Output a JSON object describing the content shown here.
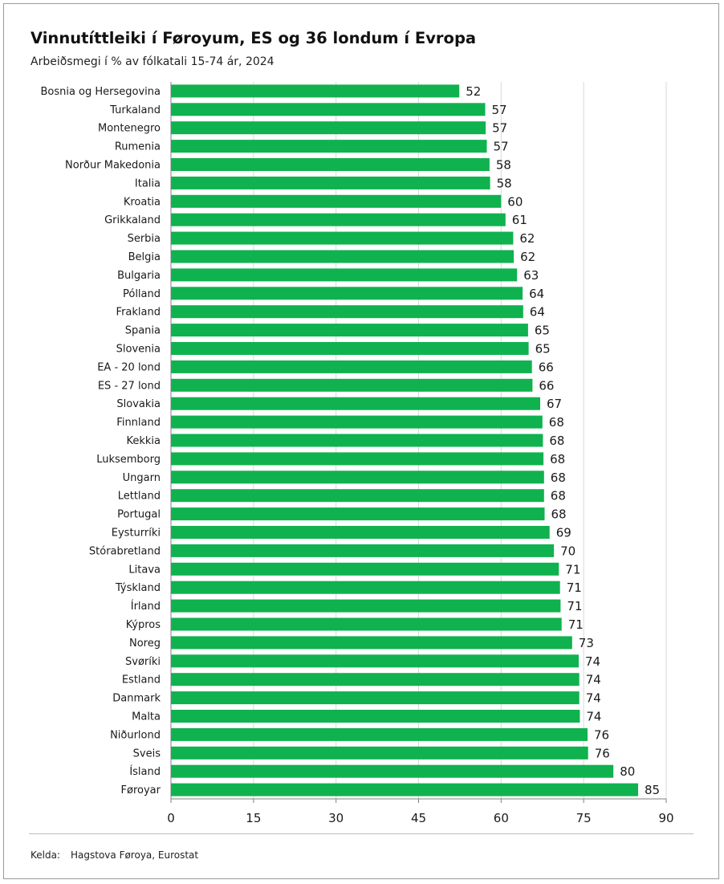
{
  "header": {
    "title": "Vinnutíttleiki í Føroyum, ES og 36 londum í Evropa",
    "subtitle": "Arbeiðsmegi í % av fólkatali 15-74 ár, 2024"
  },
  "footer": {
    "source_label": "Kelda:",
    "source_text": "Hagstova Føroya, Eurostat"
  },
  "colors": {
    "bar": "#0fb24e",
    "grid": "#d9d9d9",
    "axis": "#7f7f7f"
  },
  "chart_data": {
    "type": "bar",
    "orientation": "horizontal",
    "title": "Vinnutíttleiki í Føroyum, ES og 36 londum í Evropa",
    "subtitle": "Arbeiðsmegi í % av fólkatali 15-74 ár, 2024",
    "xlim": [
      0,
      90
    ],
    "xticks": [
      0,
      15,
      30,
      45,
      60,
      75,
      90
    ],
    "grid": true,
    "categories": [
      "Bosnia og Hersegovina",
      "Turkaland",
      "Montenegro",
      "Rumenia",
      "Norður Makedonia",
      "Italia",
      "Kroatia",
      "Grikkaland",
      "Serbia",
      "Belgia",
      "Bulgaria",
      "Pólland",
      "Frakland",
      "Spania",
      "Slovenia",
      "EA - 20 lond",
      "ES - 27 lond",
      "Slovakia",
      "Finnland",
      "Kekkia",
      "Luksemborg",
      "Ungarn",
      "Lettland",
      "Portugal",
      "Eysturríki",
      "Stórabretland",
      "Litava",
      "Týskland",
      "Írland",
      "Kýpros",
      "Noreg",
      "Svøríki",
      "Estland",
      "Danmark",
      "Malta",
      "Niðurlond",
      "Sveis",
      "Ísland",
      "Føroyar"
    ],
    "values": [
      52.4,
      57.1,
      57.2,
      57.4,
      57.9,
      58.0,
      60.0,
      60.8,
      62.2,
      62.3,
      62.9,
      63.9,
      64.0,
      64.9,
      65.0,
      65.6,
      65.7,
      67.1,
      67.5,
      67.6,
      67.7,
      67.8,
      67.8,
      67.9,
      68.8,
      69.6,
      70.5,
      70.7,
      70.8,
      71.0,
      72.9,
      74.1,
      74.2,
      74.2,
      74.3,
      75.7,
      75.8,
      80.4,
      84.9
    ],
    "labels": [
      "52",
      "57",
      "57",
      "57",
      "58",
      "58",
      "60",
      "61",
      "62",
      "62",
      "63",
      "64",
      "64",
      "65",
      "65",
      "66",
      "66",
      "67",
      "68",
      "68",
      "68",
      "68",
      "68",
      "68",
      "69",
      "70",
      "71",
      "71",
      "71",
      "71",
      "73",
      "74",
      "74",
      "74",
      "74",
      "76",
      "76",
      "80",
      "85"
    ]
  }
}
